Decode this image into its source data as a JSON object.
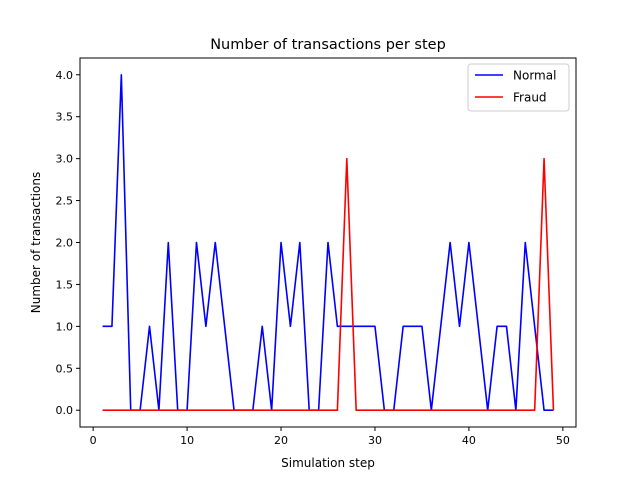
{
  "chart_data": {
    "type": "line",
    "title": "Number of transactions per step",
    "xlabel": "Simulation step",
    "ylabel": "Number of transactions",
    "xlim": [
      -1.4,
      51.4
    ],
    "ylim": [
      -0.2,
      4.2
    ],
    "xticks": [
      0,
      10,
      20,
      30,
      40,
      50
    ],
    "yticks": [
      0.0,
      0.5,
      1.0,
      1.5,
      2.0,
      2.5,
      3.0,
      3.5,
      4.0
    ],
    "ytick_labels": [
      "0.0",
      "0.5",
      "1.0",
      "1.5",
      "2.0",
      "2.5",
      "3.0",
      "3.5",
      "4.0"
    ],
    "grid": false,
    "legend": "top-right",
    "x": [
      1,
      2,
      3,
      4,
      5,
      6,
      7,
      8,
      9,
      10,
      11,
      12,
      13,
      14,
      15,
      16,
      17,
      18,
      19,
      20,
      21,
      22,
      23,
      24,
      25,
      26,
      27,
      28,
      29,
      30,
      31,
      32,
      33,
      34,
      35,
      36,
      37,
      38,
      39,
      40,
      41,
      42,
      43,
      44,
      45,
      46,
      47,
      48,
      49
    ],
    "series": [
      {
        "name": "Normal",
        "color": "#0000ff",
        "values": [
          1,
          1,
          4,
          0,
          0,
          1,
          0,
          2,
          0,
          0,
          2,
          1,
          2,
          1,
          0,
          0,
          0,
          1,
          0,
          2,
          1,
          2,
          0,
          0,
          2,
          1,
          1,
          1,
          1,
          1,
          0,
          0,
          1,
          1,
          1,
          0,
          1,
          2,
          1,
          2,
          1,
          0,
          1,
          1,
          0,
          2,
          1,
          0,
          0
        ]
      },
      {
        "name": "Fraud",
        "color": "#ff0000",
        "values": [
          0,
          0,
          0,
          0,
          0,
          0,
          0,
          0,
          0,
          0,
          0,
          0,
          0,
          0,
          0,
          0,
          0,
          0,
          0,
          0,
          0,
          0,
          0,
          0,
          0,
          0,
          3,
          0,
          0,
          0,
          0,
          0,
          0,
          0,
          0,
          0,
          0,
          0,
          0,
          0,
          0,
          0,
          0,
          0,
          0,
          0,
          0,
          3,
          0
        ]
      }
    ]
  }
}
